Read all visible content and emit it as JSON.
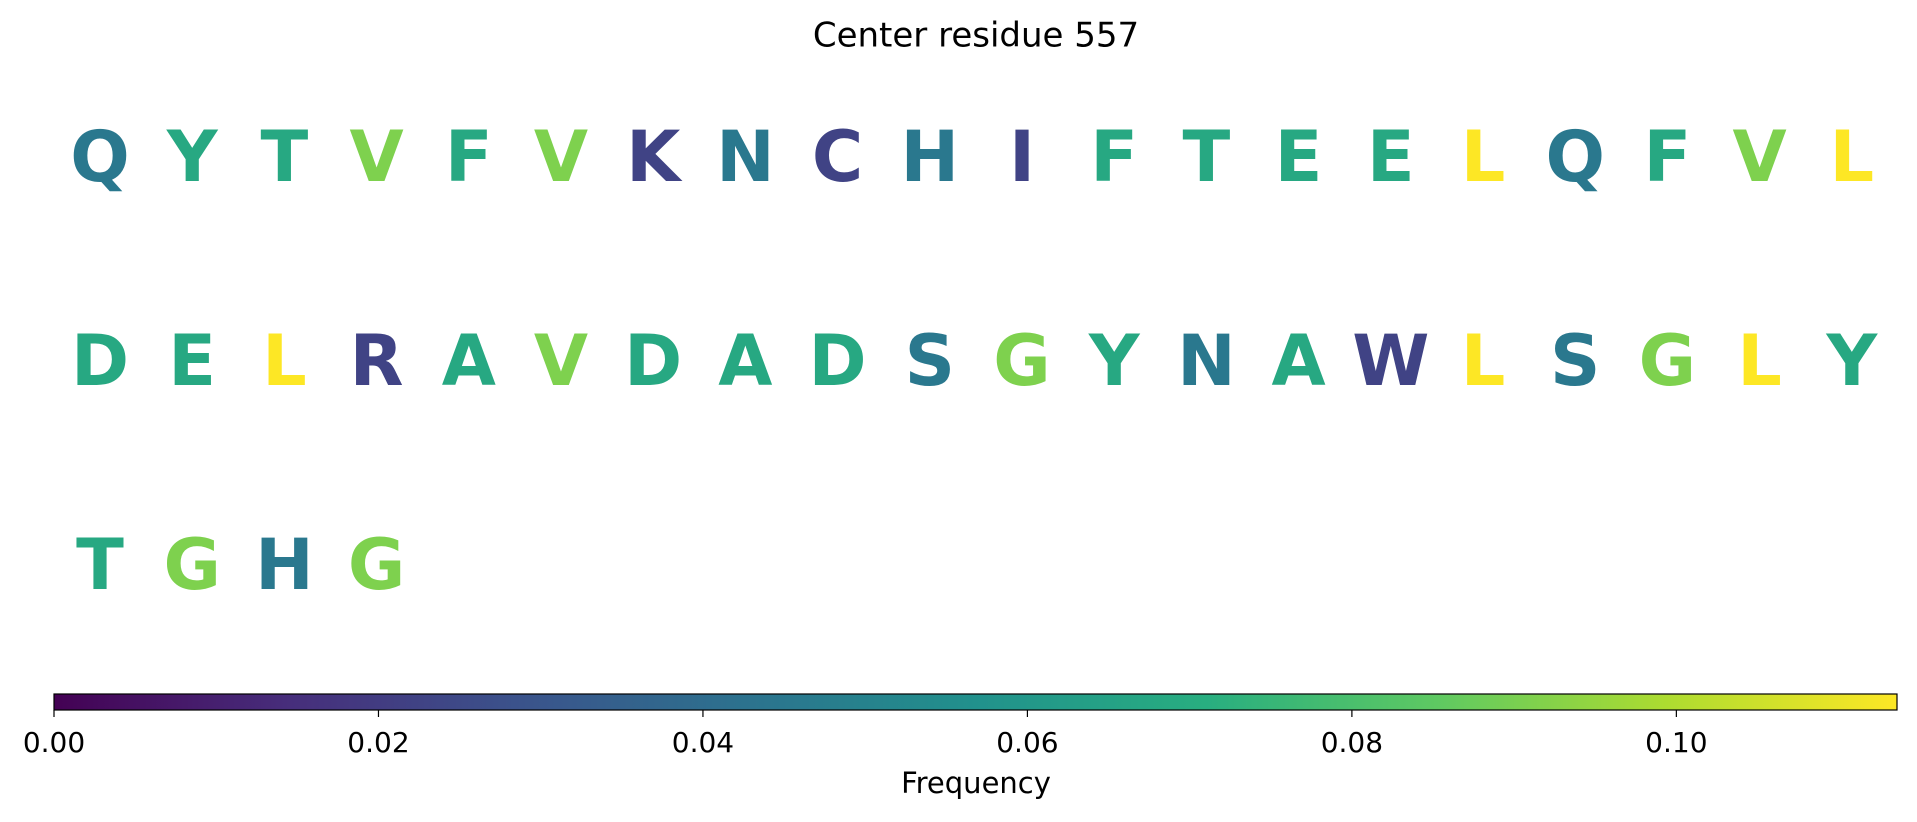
{
  "chart_data": {
    "type": "residue_grid",
    "title": "Center residue 557",
    "categories": [
      "Q",
      "Y",
      "T",
      "V",
      "F",
      "V",
      "K",
      "N",
      "C",
      "H",
      "I",
      "F",
      "T",
      "E",
      "E",
      "L",
      "Q",
      "F",
      "V",
      "L",
      "D",
      "E",
      "L",
      "R",
      "A",
      "V",
      "D",
      "A",
      "D",
      "S",
      "G",
      "Y",
      "N",
      "A",
      "W",
      "L",
      "S",
      "G",
      "L",
      "Y",
      "T",
      "G",
      "H",
      "G"
    ],
    "values": [
      0.0455,
      0.0682,
      0.0682,
      0.0909,
      0.0682,
      0.0909,
      0.0227,
      0.0455,
      0.0227,
      0.0455,
      0.0227,
      0.0682,
      0.0682,
      0.0682,
      0.0682,
      0.1136,
      0.0455,
      0.0682,
      0.0909,
      0.1136,
      0.0682,
      0.0682,
      0.1136,
      0.0227,
      0.0682,
      0.0909,
      0.0682,
      0.0682,
      0.0682,
      0.0455,
      0.0909,
      0.0682,
      0.0455,
      0.0682,
      0.0227,
      0.1136,
      0.0455,
      0.0909,
      0.1136,
      0.0682,
      0.0682,
      0.0909,
      0.0455,
      0.0909
    ],
    "per_row": 20,
    "colormap": "viridis",
    "clim": [
      0,
      0.1136
    ],
    "cticks": [
      {
        "value": 0,
        "label": "0.00"
      },
      {
        "value": 0.02,
        "label": "0.02"
      },
      {
        "value": 0.04,
        "label": "0.04"
      },
      {
        "value": 0.06,
        "label": "0.06"
      },
      {
        "value": 0.08,
        "label": "0.08"
      },
      {
        "value": 0.1,
        "label": "0.10"
      }
    ],
    "colorbar_label": "Frequency"
  }
}
